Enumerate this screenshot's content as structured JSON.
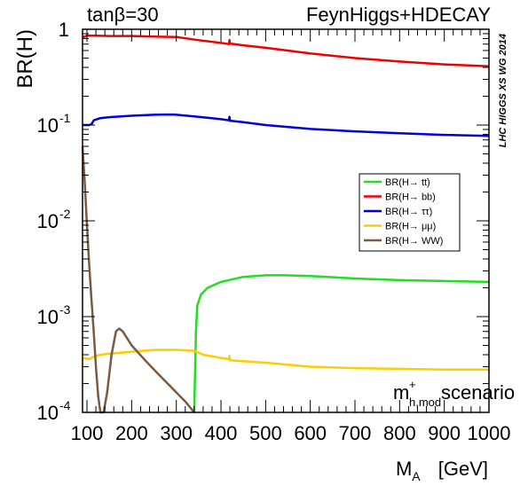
{
  "chart_data": {
    "type": "line",
    "top_left_label": "tanβ=30",
    "top_right_label": "FeynHiggs+HDECAY",
    "side_label": "LHC HIGGS XS WG 2014",
    "scenario": {
      "main": "m",
      "sup": "+",
      "sub": "h,mod",
      "suffix": " scenario"
    },
    "ylabel": "BR(H)",
    "xlabel": {
      "main": "M",
      "sub": "A",
      "unit": "[GeV]"
    },
    "xlim": [
      90,
      1000
    ],
    "ylim": [
      0.0001,
      1
    ],
    "yscale": "log",
    "xticks": [
      {
        "value": 100,
        "label": "100"
      },
      {
        "value": 200,
        "label": "200"
      },
      {
        "value": 300,
        "label": "300"
      },
      {
        "value": 400,
        "label": "400"
      },
      {
        "value": 500,
        "label": "500"
      },
      {
        "value": 600,
        "label": "600"
      },
      {
        "value": 700,
        "label": "700"
      },
      {
        "value": 800,
        "label": "800"
      },
      {
        "value": 900,
        "label": "900"
      },
      {
        "value": 1000,
        "label": "1000"
      }
    ],
    "yticks": [
      {
        "value": 1,
        "base": "1",
        "exp": ""
      },
      {
        "value": 0.1,
        "base": "10",
        "exp": "-1"
      },
      {
        "value": 0.01,
        "base": "10",
        "exp": "-2"
      },
      {
        "value": 0.001,
        "base": "10",
        "exp": "-3"
      },
      {
        "value": 0.0001,
        "base": "10",
        "exp": "-4"
      }
    ],
    "legend": {
      "position": "right-middle"
    },
    "series": [
      {
        "name": "BR(H→ tt)",
        "color": "#22dd22",
        "points": [
          [
            340,
            0.0001
          ],
          [
            342,
            0.00025
          ],
          [
            344,
            0.0007
          ],
          [
            347,
            0.0013
          ],
          [
            355,
            0.0017
          ],
          [
            370,
            0.002
          ],
          [
            400,
            0.0023
          ],
          [
            450,
            0.0026
          ],
          [
            500,
            0.0027
          ],
          [
            530,
            0.0027
          ],
          [
            540,
            0.0027
          ],
          [
            600,
            0.00265
          ],
          [
            700,
            0.0025
          ],
          [
            800,
            0.0024
          ],
          [
            900,
            0.00235
          ],
          [
            1000,
            0.0023
          ]
        ]
      },
      {
        "name": "BR(H→ bb)",
        "color": "#ee0000",
        "points": [
          [
            90,
            0.82
          ],
          [
            100,
            0.86
          ],
          [
            110,
            0.86
          ],
          [
            150,
            0.85
          ],
          [
            200,
            0.85
          ],
          [
            250,
            0.84
          ],
          [
            300,
            0.83
          ],
          [
            350,
            0.77
          ],
          [
            400,
            0.72
          ],
          [
            418,
            0.7
          ],
          [
            419,
            0.77
          ],
          [
            420,
            0.71
          ],
          [
            450,
            0.68
          ],
          [
            500,
            0.64
          ],
          [
            600,
            0.56
          ],
          [
            700,
            0.5
          ],
          [
            800,
            0.46
          ],
          [
            900,
            0.43
          ],
          [
            1000,
            0.41
          ]
        ]
      },
      {
        "name": "BR(H→ ττ)",
        "color": "#0000dd",
        "points": [
          [
            90,
            0.1
          ],
          [
            105,
            0.1
          ],
          [
            110,
            0.102
          ],
          [
            115,
            0.112
          ],
          [
            130,
            0.118
          ],
          [
            150,
            0.121
          ],
          [
            200,
            0.125
          ],
          [
            250,
            0.128
          ],
          [
            290,
            0.129
          ],
          [
            300,
            0.128
          ],
          [
            350,
            0.122
          ],
          [
            400,
            0.115
          ],
          [
            418,
            0.112
          ],
          [
            419,
            0.122
          ],
          [
            420,
            0.111
          ],
          [
            450,
            0.107
          ],
          [
            500,
            0.1
          ],
          [
            600,
            0.091
          ],
          [
            700,
            0.086
          ],
          [
            800,
            0.082
          ],
          [
            900,
            0.079
          ],
          [
            1000,
            0.077
          ]
        ]
      },
      {
        "name": "BR(H→ μμ)",
        "color": "#ffcc00",
        "points": [
          [
            90,
            0.00037
          ],
          [
            105,
            0.00036
          ],
          [
            115,
            0.00038
          ],
          [
            130,
            0.0004
          ],
          [
            150,
            0.00041
          ],
          [
            200,
            0.00043
          ],
          [
            250,
            0.00045
          ],
          [
            300,
            0.00045
          ],
          [
            340,
            0.00044
          ],
          [
            360,
            0.0004
          ],
          [
            400,
            0.00037
          ],
          [
            418,
            0.00036
          ],
          [
            419,
            0.00039
          ],
          [
            420,
            0.00035
          ],
          [
            500,
            0.00033
          ],
          [
            600,
            0.0003
          ],
          [
            700,
            0.00029
          ],
          [
            800,
            0.000285
          ],
          [
            900,
            0.00028
          ],
          [
            1000,
            0.00028
          ]
        ]
      },
      {
        "name": "BR(H→ WW)",
        "color": "#7a5a40",
        "points": [
          [
            90,
            0.06
          ],
          [
            95,
            0.025
          ],
          [
            100,
            0.009
          ],
          [
            105,
            0.0035
          ],
          [
            110,
            0.0015
          ],
          [
            115,
            0.0007
          ],
          [
            120,
            0.0003
          ],
          [
            125,
            0.00015
          ],
          [
            130,
            0.0001
          ],
          [
            137,
            0.0001
          ],
          [
            145,
            0.00016
          ],
          [
            155,
            0.0004
          ],
          [
            165,
            0.0007
          ],
          [
            172,
            0.00075
          ],
          [
            180,
            0.0007
          ],
          [
            200,
            0.0005
          ],
          [
            230,
            0.00035
          ],
          [
            260,
            0.00025
          ],
          [
            290,
            0.00018
          ],
          [
            320,
            0.00013
          ],
          [
            340,
            0.0001
          ]
        ]
      }
    ]
  }
}
